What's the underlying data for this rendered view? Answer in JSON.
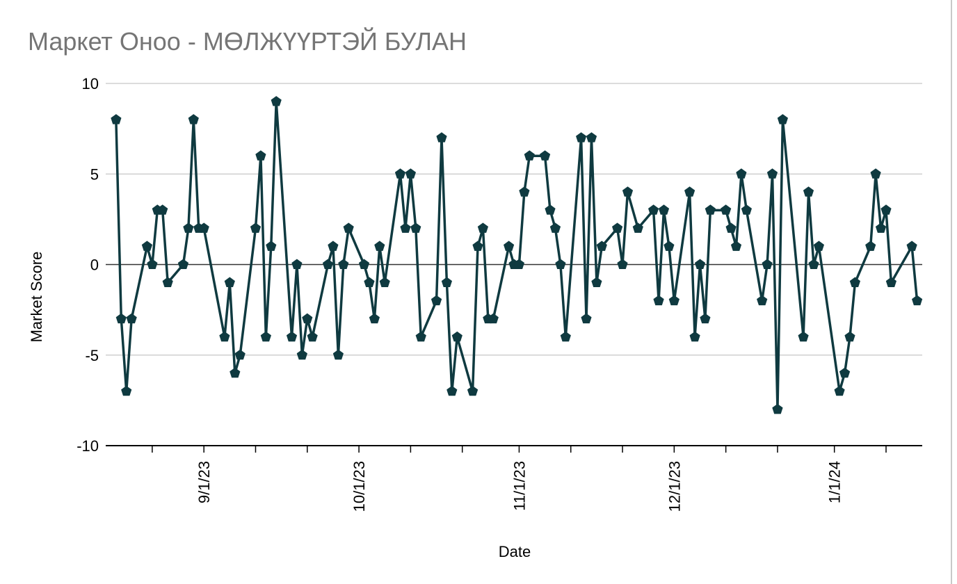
{
  "chart_data": {
    "type": "line",
    "title": "Маркет Оноо - МӨЛЖҮҮРТЭЙ БУЛАН",
    "x_label": "Date",
    "y_label": "Market Score",
    "x": [
      "2023-08-15",
      "2023-08-16",
      "2023-08-17",
      "2023-08-18",
      "2023-08-21",
      "2023-08-22",
      "2023-08-23",
      "2023-08-24",
      "2023-08-25",
      "2023-08-28",
      "2023-08-29",
      "2023-08-30",
      "2023-08-31",
      "2023-09-01",
      "2023-09-05",
      "2023-09-06",
      "2023-09-07",
      "2023-09-08",
      "2023-09-11",
      "2023-09-12",
      "2023-09-13",
      "2023-09-14",
      "2023-09-15",
      "2023-09-18",
      "2023-09-19",
      "2023-09-20",
      "2023-09-21",
      "2023-09-22",
      "2023-09-25",
      "2023-09-26",
      "2023-09-27",
      "2023-09-28",
      "2023-09-29",
      "2023-10-02",
      "2023-10-03",
      "2023-10-04",
      "2023-10-05",
      "2023-10-06",
      "2023-10-09",
      "2023-10-10",
      "2023-10-11",
      "2023-10-12",
      "2023-10-13",
      "2023-10-16",
      "2023-10-17",
      "2023-10-18",
      "2023-10-19",
      "2023-10-20",
      "2023-10-23",
      "2023-10-24",
      "2023-10-25",
      "2023-10-26",
      "2023-10-27",
      "2023-10-30",
      "2023-10-31",
      "2023-11-01",
      "2023-11-02",
      "2023-11-03",
      "2023-11-06",
      "2023-11-07",
      "2023-11-08",
      "2023-11-09",
      "2023-11-10",
      "2023-11-13",
      "2023-11-14",
      "2023-11-15",
      "2023-11-16",
      "2023-11-17",
      "2023-11-20",
      "2023-11-21",
      "2023-11-22",
      "2023-11-24",
      "2023-11-27",
      "2023-11-28",
      "2023-11-29",
      "2023-11-30",
      "2023-12-01",
      "2023-12-04",
      "2023-12-05",
      "2023-12-06",
      "2023-12-07",
      "2023-12-08",
      "2023-12-11",
      "2023-12-12",
      "2023-12-13",
      "2023-12-14",
      "2023-12-15",
      "2023-12-18",
      "2023-12-19",
      "2023-12-20",
      "2023-12-21",
      "2023-12-22",
      "2023-12-26",
      "2023-12-27",
      "2023-12-28",
      "2023-12-29",
      "2024-01-02",
      "2024-01-03",
      "2024-01-04",
      "2024-01-05",
      "2024-01-08",
      "2024-01-09",
      "2024-01-10",
      "2024-01-11",
      "2024-01-12",
      "2024-01-16",
      "2024-01-17"
    ],
    "series": [
      {
        "name": "Market Score",
        "color": "#0f3a40",
        "values": [
          8,
          -3,
          -7,
          -3,
          1,
          0,
          3,
          3,
          -1,
          0,
          2,
          8,
          2,
          2,
          -4,
          -1,
          -6,
          -5,
          2,
          6,
          -4,
          1,
          9,
          -4,
          0,
          -5,
          -3,
          -4,
          0,
          1,
          -5,
          0,
          2,
          0,
          -1,
          -3,
          1,
          -1,
          5,
          2,
          5,
          2,
          -4,
          -2,
          7,
          -1,
          -7,
          -4,
          -7,
          1,
          2,
          -3,
          -3,
          1,
          0,
          0,
          4,
          6,
          6,
          3,
          2,
          0,
          -4,
          7,
          -3,
          7,
          -1,
          1,
          2,
          0,
          4,
          2,
          3,
          -2,
          3,
          1,
          -2,
          4,
          -4,
          0,
          -3,
          3,
          3,
          2,
          1,
          5,
          3,
          -2,
          0,
          5,
          -8,
          8,
          -4,
          4,
          0,
          1,
          -7,
          -6,
          -4,
          -1,
          1,
          5,
          2,
          3,
          -1,
          1,
          -2
        ]
      }
    ],
    "xlim": [
      "2023-08-13",
      "2024-01-18"
    ],
    "xticks": [
      {
        "value": "2023-09-01",
        "label": "9/1/23"
      },
      {
        "value": "2023-10-01",
        "label": "10/1/23"
      },
      {
        "value": "2023-11-01",
        "label": "11/1/23"
      },
      {
        "value": "2023-12-01",
        "label": "12/1/23"
      },
      {
        "value": "2024-01-01",
        "label": "1/1/24"
      }
    ],
    "xminorticks": [
      "2023-08-22",
      "2023-09-11",
      "2023-09-21",
      "2023-10-11",
      "2023-10-21",
      "2023-11-11",
      "2023-11-21",
      "2023-12-11",
      "2023-12-21",
      "2024-01-11"
    ],
    "ylim": [
      -10,
      10
    ],
    "yticks": [
      -10,
      -5,
      0,
      5,
      10
    ],
    "grid": true
  }
}
